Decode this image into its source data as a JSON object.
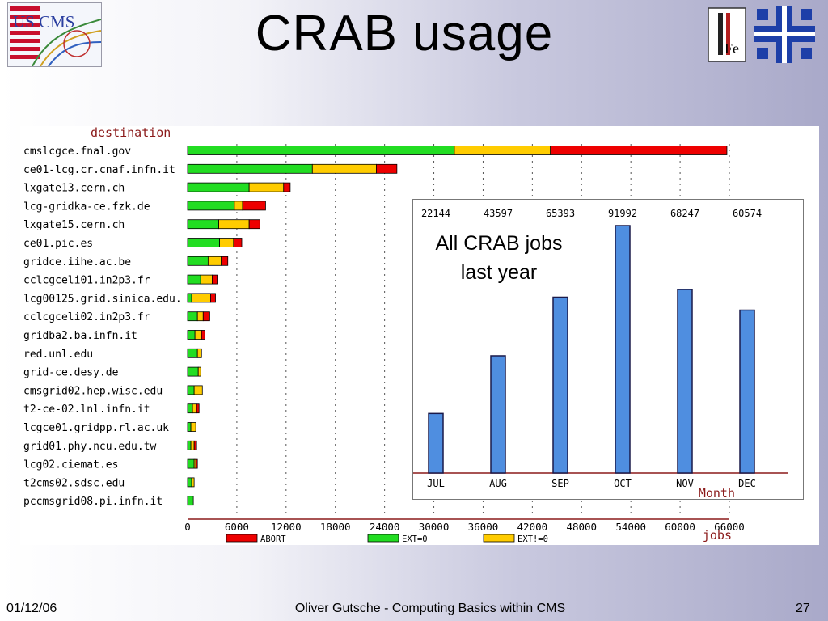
{
  "slide": {
    "title": "CRAB usage",
    "logo_left_text": "US CMS",
    "logo_right_text": "Fe"
  },
  "footer": {
    "date": "01/12/06",
    "author": "Oliver Gutsche - Computing Basics within CMS",
    "page": "27"
  },
  "chart_data": [
    {
      "type": "bar",
      "orientation": "horizontal",
      "stacked": true,
      "title": "",
      "ylabel": "destination",
      "xlabel": "jobs",
      "xlim": [
        0,
        66000
      ],
      "x_ticks": [
        "0",
        "6000",
        "12000",
        "18000",
        "24000",
        "30000",
        "36000",
        "42000",
        "48000",
        "54000",
        "60000",
        "66000"
      ],
      "grid": true,
      "legend_position": "bottom",
      "categories": [
        "cmslcgce.fnal.gov",
        "ce01-lcg.cr.cnaf.infn.it",
        "lxgate13.cern.ch",
        "lcg-gridka-ce.fzk.de",
        "lxgate15.cern.ch",
        "ce01.pic.es",
        "gridce.iihe.ac.be",
        "cclcgceli01.in2p3.fr",
        "lcg00125.grid.sinica.edu.",
        "cclcgceli02.in2p3.fr",
        "gridba2.ba.infn.it",
        "red.unl.edu",
        "grid-ce.desy.de",
        "cmsgrid02.hep.wisc.edu",
        "t2-ce-02.lnl.infn.it",
        "lcgce01.gridpp.rl.ac.uk",
        "grid01.phy.ncu.edu.tw",
        "lcg02.ciemat.es",
        "t2cms02.sdsc.edu",
        "pccmsgrid08.pi.infn.it"
      ],
      "series": [
        {
          "name": "EXT=0",
          "color": "#22dd22",
          "values": [
            32500,
            15200,
            7500,
            5700,
            3800,
            3900,
            2500,
            1600,
            500,
            1200,
            900,
            1200,
            1300,
            800,
            600,
            400,
            400,
            800,
            500,
            700
          ]
        },
        {
          "name": "EXT!=0",
          "color": "#ffcc00",
          "values": [
            11700,
            7800,
            4200,
            1000,
            3700,
            1700,
            1600,
            1400,
            2300,
            700,
            800,
            500,
            300,
            1000,
            500,
            600,
            400,
            200,
            300,
            0
          ]
        },
        {
          "name": "ABORT",
          "color": "#ee0000",
          "values": [
            21500,
            2500,
            800,
            2800,
            1300,
            1000,
            800,
            600,
            600,
            800,
            400,
            0,
            0,
            0,
            300,
            0,
            300,
            200,
            0,
            0
          ]
        }
      ],
      "legend_order": [
        "ABORT",
        "EXT=0",
        "EXT!=0"
      ]
    },
    {
      "type": "bar",
      "title": "All CRAB jobs last year",
      "xlabel": "Month",
      "categories": [
        "JUL",
        "AUG",
        "SEP",
        "OCT",
        "NOV",
        "DEC"
      ],
      "values": [
        22144,
        43597,
        65393,
        91992,
        68247,
        60574
      ],
      "value_labels": [
        "22144",
        "43597",
        "65393",
        "91992",
        "68247",
        "60574"
      ],
      "bar_color": "#4f8ee0",
      "ylim": [
        0,
        95000
      ]
    }
  ]
}
